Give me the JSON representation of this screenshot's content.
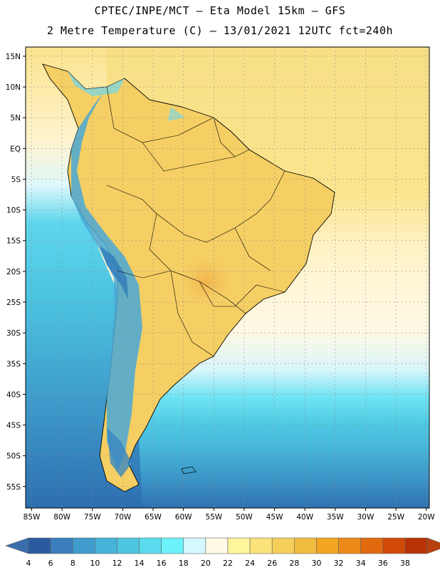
{
  "header": {
    "line1": "CPTEC/INPE/MCT –  Eta Model 15km – GFS",
    "line2": "2 Metre Temperature (C) – 13/01/2021 12UTC fct=240h"
  },
  "map": {
    "lat_labels": [
      "15N",
      "10N",
      "5N",
      "EQ",
      "5S",
      "10S",
      "15S",
      "20S",
      "25S",
      "30S",
      "35S",
      "40S",
      "45S",
      "50S",
      "55S"
    ],
    "lon_labels": [
      "85W",
      "80W",
      "75W",
      "70W",
      "65W",
      "60W",
      "55W",
      "50W",
      "45W",
      "40W",
      "35W",
      "30W",
      "25W",
      "20W"
    ],
    "extent": {
      "lon": [
        -86,
        -19.5
      ],
      "lat": [
        -58.5,
        16.5
      ]
    }
  },
  "legend": {
    "labels": [
      "4",
      "6",
      "8",
      "10",
      "12",
      "14",
      "16",
      "18",
      "20",
      "22",
      "24",
      "26",
      "28",
      "30",
      "32",
      "34",
      "36",
      "38"
    ],
    "colors": [
      "#2a5aa0",
      "#3a7fbc",
      "#3f9ccd",
      "#46b3da",
      "#4ec6e2",
      "#5bdcee",
      "#6cf2fb",
      "#d5f8ff",
      "#fff9e6",
      "#fff59a",
      "#fbe27a",
      "#f6cf5b",
      "#f1bd3e",
      "#f1a520",
      "#eb8a18",
      "#e26a0e",
      "#d24a08",
      "#b73204"
    ],
    "below_color": "#3a6dac",
    "above_color": "#b8400e"
  }
}
